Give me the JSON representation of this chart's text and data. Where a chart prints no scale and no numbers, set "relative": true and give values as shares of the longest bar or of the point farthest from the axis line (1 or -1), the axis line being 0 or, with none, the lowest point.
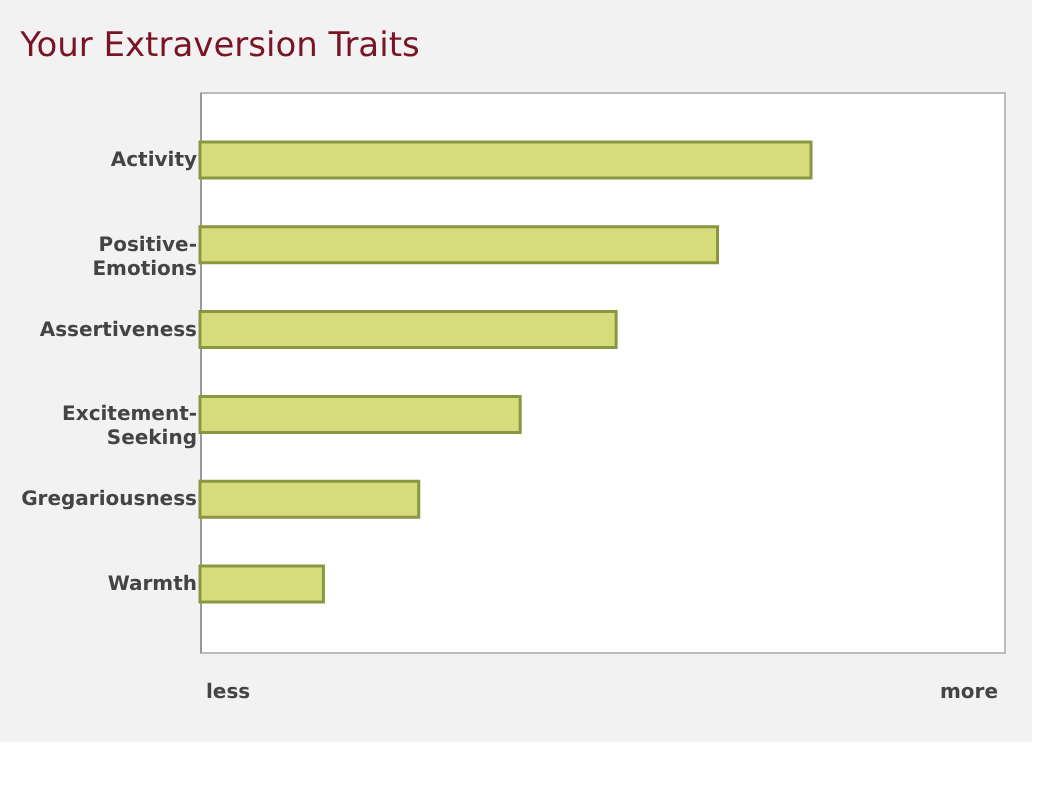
{
  "chart_data": {
    "type": "bar",
    "orientation": "horizontal",
    "relative": true,
    "title": "Your Extraversion Traits",
    "categories": [
      "Activity",
      "Positive-Emotions",
      "Assertiveness",
      "Excitement-Seeking",
      "Gregariousness",
      "Warmth"
    ],
    "values": [
      1,
      0.847,
      0.681,
      0.524,
      0.358,
      0.202
    ],
    "color": "#d6dc7c",
    "annotations": [
      "less",
      "more"
    ]
  }
}
